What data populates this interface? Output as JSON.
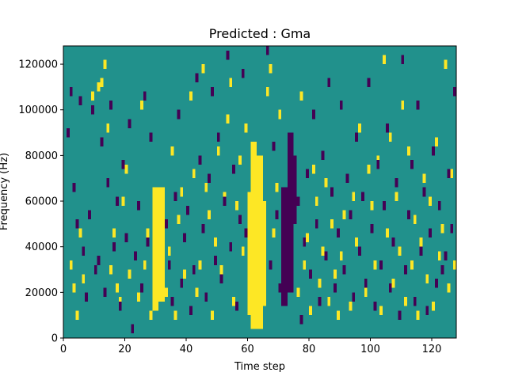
{
  "chart_data": {
    "type": "heatmap",
    "title": "Predicted : Gma",
    "xlabel": "Time step",
    "ylabel": "Frequency (Hz)",
    "xlim": [
      0,
      128
    ],
    "ylim": [
      0,
      128000
    ],
    "x_ticks": [
      0,
      20,
      40,
      60,
      80,
      100,
      120
    ],
    "x_tick_labels": [
      "0",
      "20",
      "40",
      "60",
      "80",
      "100",
      "120"
    ],
    "y_ticks": [
      0,
      20000,
      40000,
      60000,
      80000,
      100000,
      120000
    ],
    "y_tick_labels": [
      "0",
      "20000",
      "40000",
      "60000",
      "80000",
      "100000",
      "120000"
    ],
    "n_time_steps": 128,
    "n_freq_bins": 64,
    "bin_height_hz": 2000,
    "colormap": "viridis",
    "colors": {
      "background": "#21918c",
      "high": "#fde725",
      "low": "#440154"
    },
    "default_value": 0,
    "yellow_columns": [
      {
        "x": [
          29,
          31
        ],
        "y": [
          12000,
          66000
        ]
      },
      {
        "x": [
          31,
          33
        ],
        "y": [
          16000,
          66000
        ]
      },
      {
        "x": [
          61,
          63
        ],
        "y": [
          4000,
          86000
        ]
      },
      {
        "x": [
          63,
          65
        ],
        "y": [
          4000,
          80000
        ]
      },
      {
        "x": [
          60,
          61
        ],
        "y": [
          10000,
          64000
        ]
      },
      {
        "x": [
          65,
          66
        ],
        "y": [
          14000,
          60000
        ]
      }
    ],
    "purple_columns": [
      {
        "x": [
          71,
          73
        ],
        "y": [
          14000,
          66000
        ]
      },
      {
        "x": [
          73,
          75
        ],
        "y": [
          20000,
          90000
        ]
      },
      {
        "x": [
          75,
          76
        ],
        "y": [
          50000,
          80000
        ]
      }
    ],
    "high_cells": [
      [
        2,
        30
      ],
      [
        3,
        20
      ],
      [
        4,
        8
      ],
      [
        5,
        44
      ],
      [
        6,
        24
      ],
      [
        9,
        104
      ],
      [
        11,
        108
      ],
      [
        12,
        110
      ],
      [
        13,
        118
      ],
      [
        14,
        90
      ],
      [
        15,
        28
      ],
      [
        16,
        44
      ],
      [
        17,
        20
      ],
      [
        18,
        14
      ],
      [
        19,
        58
      ],
      [
        20,
        72
      ],
      [
        21,
        26
      ],
      [
        24,
        16
      ],
      [
        25,
        100
      ],
      [
        26,
        30
      ],
      [
        27,
        44
      ],
      [
        28,
        8
      ],
      [
        29,
        60
      ],
      [
        33,
        18
      ],
      [
        34,
        36
      ],
      [
        35,
        80
      ],
      [
        36,
        8
      ],
      [
        37,
        50
      ],
      [
        38,
        62
      ],
      [
        39,
        26
      ],
      [
        41,
        104
      ],
      [
        42,
        70
      ],
      [
        43,
        18
      ],
      [
        44,
        30
      ],
      [
        45,
        116
      ],
      [
        46,
        64
      ],
      [
        47,
        52
      ],
      [
        48,
        8
      ],
      [
        49,
        40
      ],
      [
        50,
        80
      ],
      [
        51,
        28
      ],
      [
        52,
        60
      ],
      [
        53,
        94
      ],
      [
        54,
        110
      ],
      [
        55,
        14
      ],
      [
        56,
        56
      ],
      [
        57,
        76
      ],
      [
        58,
        36
      ],
      [
        59,
        90
      ],
      [
        66,
        106
      ],
      [
        67,
        116
      ],
      [
        68,
        44
      ],
      [
        69,
        64
      ],
      [
        70,
        96
      ],
      [
        76,
        18
      ],
      [
        77,
        104
      ],
      [
        78,
        30
      ],
      [
        79,
        42
      ],
      [
        80,
        10
      ],
      [
        81,
        72
      ],
      [
        82,
        58
      ],
      [
        83,
        22
      ],
      [
        84,
        36
      ],
      [
        85,
        66
      ],
      [
        86,
        14
      ],
      [
        87,
        48
      ],
      [
        88,
        26
      ],
      [
        89,
        8
      ],
      [
        90,
        34
      ],
      [
        91,
        52
      ],
      [
        93,
        12
      ],
      [
        94,
        60
      ],
      [
        95,
        40
      ],
      [
        96,
        90
      ],
      [
        98,
        18
      ],
      [
        99,
        72
      ],
      [
        100,
        56
      ],
      [
        101,
        30
      ],
      [
        102,
        76
      ],
      [
        103,
        10
      ],
      [
        104,
        120
      ],
      [
        105,
        44
      ],
      [
        106,
        86
      ],
      [
        107,
        22
      ],
      [
        108,
        60
      ],
      [
        109,
        36
      ],
      [
        110,
        100
      ],
      [
        111,
        14
      ],
      [
        112,
        80
      ],
      [
        113,
        30
      ],
      [
        114,
        50
      ],
      [
        115,
        8
      ],
      [
        116,
        40
      ],
      [
        117,
        68
      ],
      [
        118,
        24
      ],
      [
        119,
        58
      ],
      [
        120,
        12
      ],
      [
        121,
        84
      ],
      [
        122,
        34
      ],
      [
        123,
        46
      ],
      [
        124,
        118
      ],
      [
        125,
        20
      ],
      [
        126,
        70
      ],
      [
        127,
        30
      ]
    ],
    "low_cells": [
      [
        1,
        88
      ],
      [
        2,
        106
      ],
      [
        3,
        64
      ],
      [
        4,
        48
      ],
      [
        5,
        102
      ],
      [
        6,
        36
      ],
      [
        7,
        16
      ],
      [
        8,
        52
      ],
      [
        9,
        98
      ],
      [
        10,
        28
      ],
      [
        11,
        32
      ],
      [
        12,
        84
      ],
      [
        13,
        18
      ],
      [
        14,
        66
      ],
      [
        15,
        100
      ],
      [
        16,
        38
      ],
      [
        17,
        58
      ],
      [
        18,
        12
      ],
      [
        19,
        74
      ],
      [
        20,
        42
      ],
      [
        21,
        92
      ],
      [
        22,
        2
      ],
      [
        23,
        34
      ],
      [
        24,
        56
      ],
      [
        25,
        20
      ],
      [
        26,
        104
      ],
      [
        27,
        40
      ],
      [
        28,
        86
      ],
      [
        33,
        48
      ],
      [
        34,
        30
      ],
      [
        35,
        14
      ],
      [
        36,
        60
      ],
      [
        37,
        96
      ],
      [
        38,
        22
      ],
      [
        39,
        42
      ],
      [
        40,
        54
      ],
      [
        41,
        10
      ],
      [
        42,
        28
      ],
      [
        43,
        112
      ],
      [
        44,
        76
      ],
      [
        45,
        46
      ],
      [
        46,
        16
      ],
      [
        47,
        68
      ],
      [
        48,
        106
      ],
      [
        49,
        32
      ],
      [
        50,
        86
      ],
      [
        51,
        24
      ],
      [
        52,
        58
      ],
      [
        53,
        122
      ],
      [
        54,
        38
      ],
      [
        55,
        72
      ],
      [
        56,
        12
      ],
      [
        57,
        50
      ],
      [
        58,
        114
      ],
      [
        59,
        44
      ],
      [
        66,
        124
      ],
      [
        67,
        30
      ],
      [
        68,
        82
      ],
      [
        69,
        52
      ],
      [
        70,
        20
      ],
      [
        76,
        58
      ],
      [
        77,
        6
      ],
      [
        78,
        40
      ],
      [
        79,
        70
      ],
      [
        80,
        26
      ],
      [
        81,
        96
      ],
      [
        82,
        48
      ],
      [
        83,
        14
      ],
      [
        84,
        78
      ],
      [
        85,
        34
      ],
      [
        86,
        110
      ],
      [
        87,
        62
      ],
      [
        88,
        20
      ],
      [
        89,
        44
      ],
      [
        90,
        100
      ],
      [
        91,
        28
      ],
      [
        92,
        68
      ],
      [
        93,
        52
      ],
      [
        94,
        16
      ],
      [
        95,
        86
      ],
      [
        96,
        36
      ],
      [
        97,
        60
      ],
      [
        98,
        22
      ],
      [
        99,
        110
      ],
      [
        100,
        46
      ],
      [
        101,
        12
      ],
      [
        102,
        74
      ],
      [
        103,
        30
      ],
      [
        104,
        56
      ],
      [
        105,
        90
      ],
      [
        106,
        20
      ],
      [
        107,
        40
      ],
      [
        108,
        66
      ],
      [
        109,
        8
      ],
      [
        110,
        120
      ],
      [
        111,
        28
      ],
      [
        112,
        52
      ],
      [
        113,
        74
      ],
      [
        114,
        14
      ],
      [
        115,
        100
      ],
      [
        116,
        36
      ],
      [
        117,
        62
      ],
      [
        118,
        10
      ],
      [
        119,
        44
      ],
      [
        120,
        80
      ],
      [
        121,
        22
      ],
      [
        122,
        56
      ],
      [
        123,
        28
      ],
      [
        124,
        34
      ],
      [
        125,
        70
      ],
      [
        126,
        46
      ],
      [
        127,
        106
      ]
    ]
  }
}
